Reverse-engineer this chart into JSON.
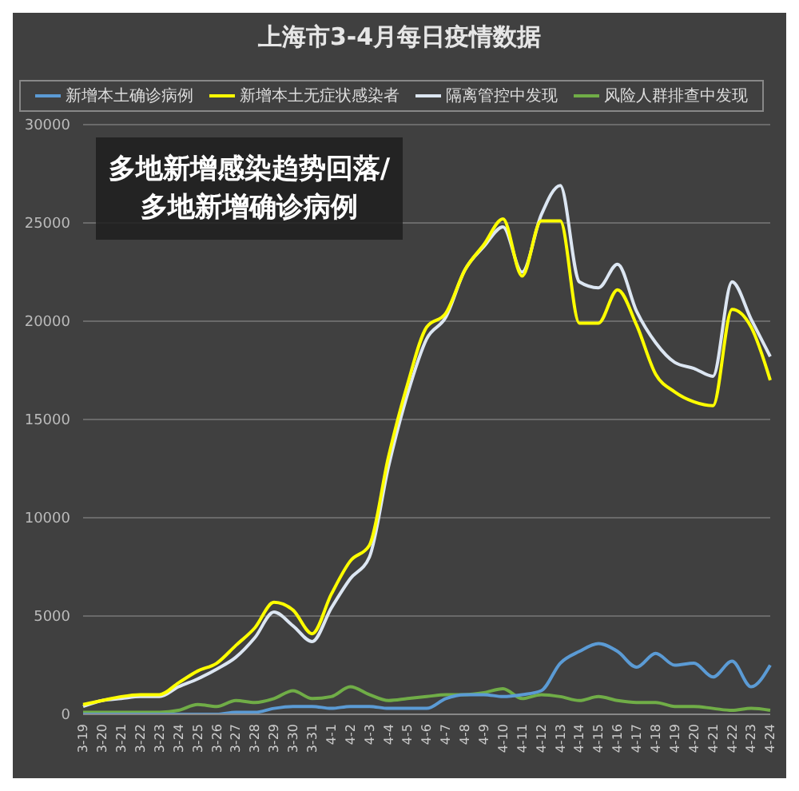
{
  "chart_data": {
    "type": "line",
    "title": "上海市3-4月每日疫情数据",
    "annotations": [
      "多地新增感染趋势回落/多地新增确诊病例"
    ],
    "categories": [
      "3-19",
      "3-20",
      "3-21",
      "3-22",
      "3-23",
      "3-24",
      "3-25",
      "3-26",
      "3-27",
      "3-28",
      "3-29",
      "3-30",
      "3-31",
      "4-1",
      "4-2",
      "4-3",
      "4-4",
      "4-5",
      "4-6",
      "4-7",
      "4-8",
      "4-9",
      "4-10",
      "4-11",
      "4-12",
      "4-13",
      "4-14",
      "4-15",
      "4-16",
      "4-17",
      "4-18",
      "4-19",
      "4-20",
      "4-21",
      "4-22",
      "4-23",
      "4-24"
    ],
    "series": [
      {
        "name": "新增本土确诊病例",
        "color": "#5b9bd5",
        "values": [
          0,
          0,
          0,
          0,
          0,
          0,
          0,
          0,
          100,
          100,
          300,
          400,
          400,
          300,
          400,
          400,
          300,
          300,
          300,
          800,
          1000,
          1000,
          900,
          1000,
          1200,
          2600,
          3200,
          3600,
          3200,
          2400,
          3100,
          2500,
          2600,
          1900,
          2700,
          1400,
          2500
        ]
      },
      {
        "name": "新增本土无症状感染者",
        "color": "#ffff00",
        "values": [
          500,
          700,
          900,
          1000,
          1000,
          1600,
          2200,
          2600,
          3500,
          4400,
          5700,
          5300,
          4100,
          6100,
          7800,
          8600,
          13100,
          16800,
          19700,
          20400,
          22600,
          23900,
          25200,
          22300,
          25100,
          25100,
          19900,
          19900,
          21600,
          19800,
          17300,
          16400,
          15900,
          15700,
          20600,
          19700,
          17000
        ]
      },
      {
        "name": "隔离管控中发现",
        "color": "#dce6f2",
        "values": [
          400,
          700,
          800,
          900,
          900,
          1400,
          1800,
          2300,
          2900,
          3900,
          5200,
          4500,
          3700,
          5400,
          6900,
          8000,
          12600,
          16300,
          19100,
          20200,
          22600,
          23800,
          24800,
          22500,
          25400,
          26900,
          22000,
          21700,
          22900,
          20500,
          18900,
          17900,
          17600,
          17200,
          22000,
          20100,
          18200
        ]
      },
      {
        "name": "风险人群排查中发现",
        "color": "#70ad47",
        "values": [
          100,
          100,
          100,
          100,
          100,
          200,
          500,
          400,
          700,
          600,
          800,
          1200,
          800,
          900,
          1400,
          1000,
          700,
          800,
          900,
          1000,
          1000,
          1100,
          1300,
          800,
          1000,
          900,
          700,
          900,
          700,
          600,
          600,
          400,
          400,
          300,
          200,
          300,
          200
        ]
      }
    ],
    "ylim": [
      0,
      30000
    ],
    "yticks": [
      0,
      5000,
      10000,
      15000,
      20000,
      25000,
      30000
    ],
    "grid": "y",
    "legend": "top",
    "marker": "none",
    "line_style": "solid"
  }
}
